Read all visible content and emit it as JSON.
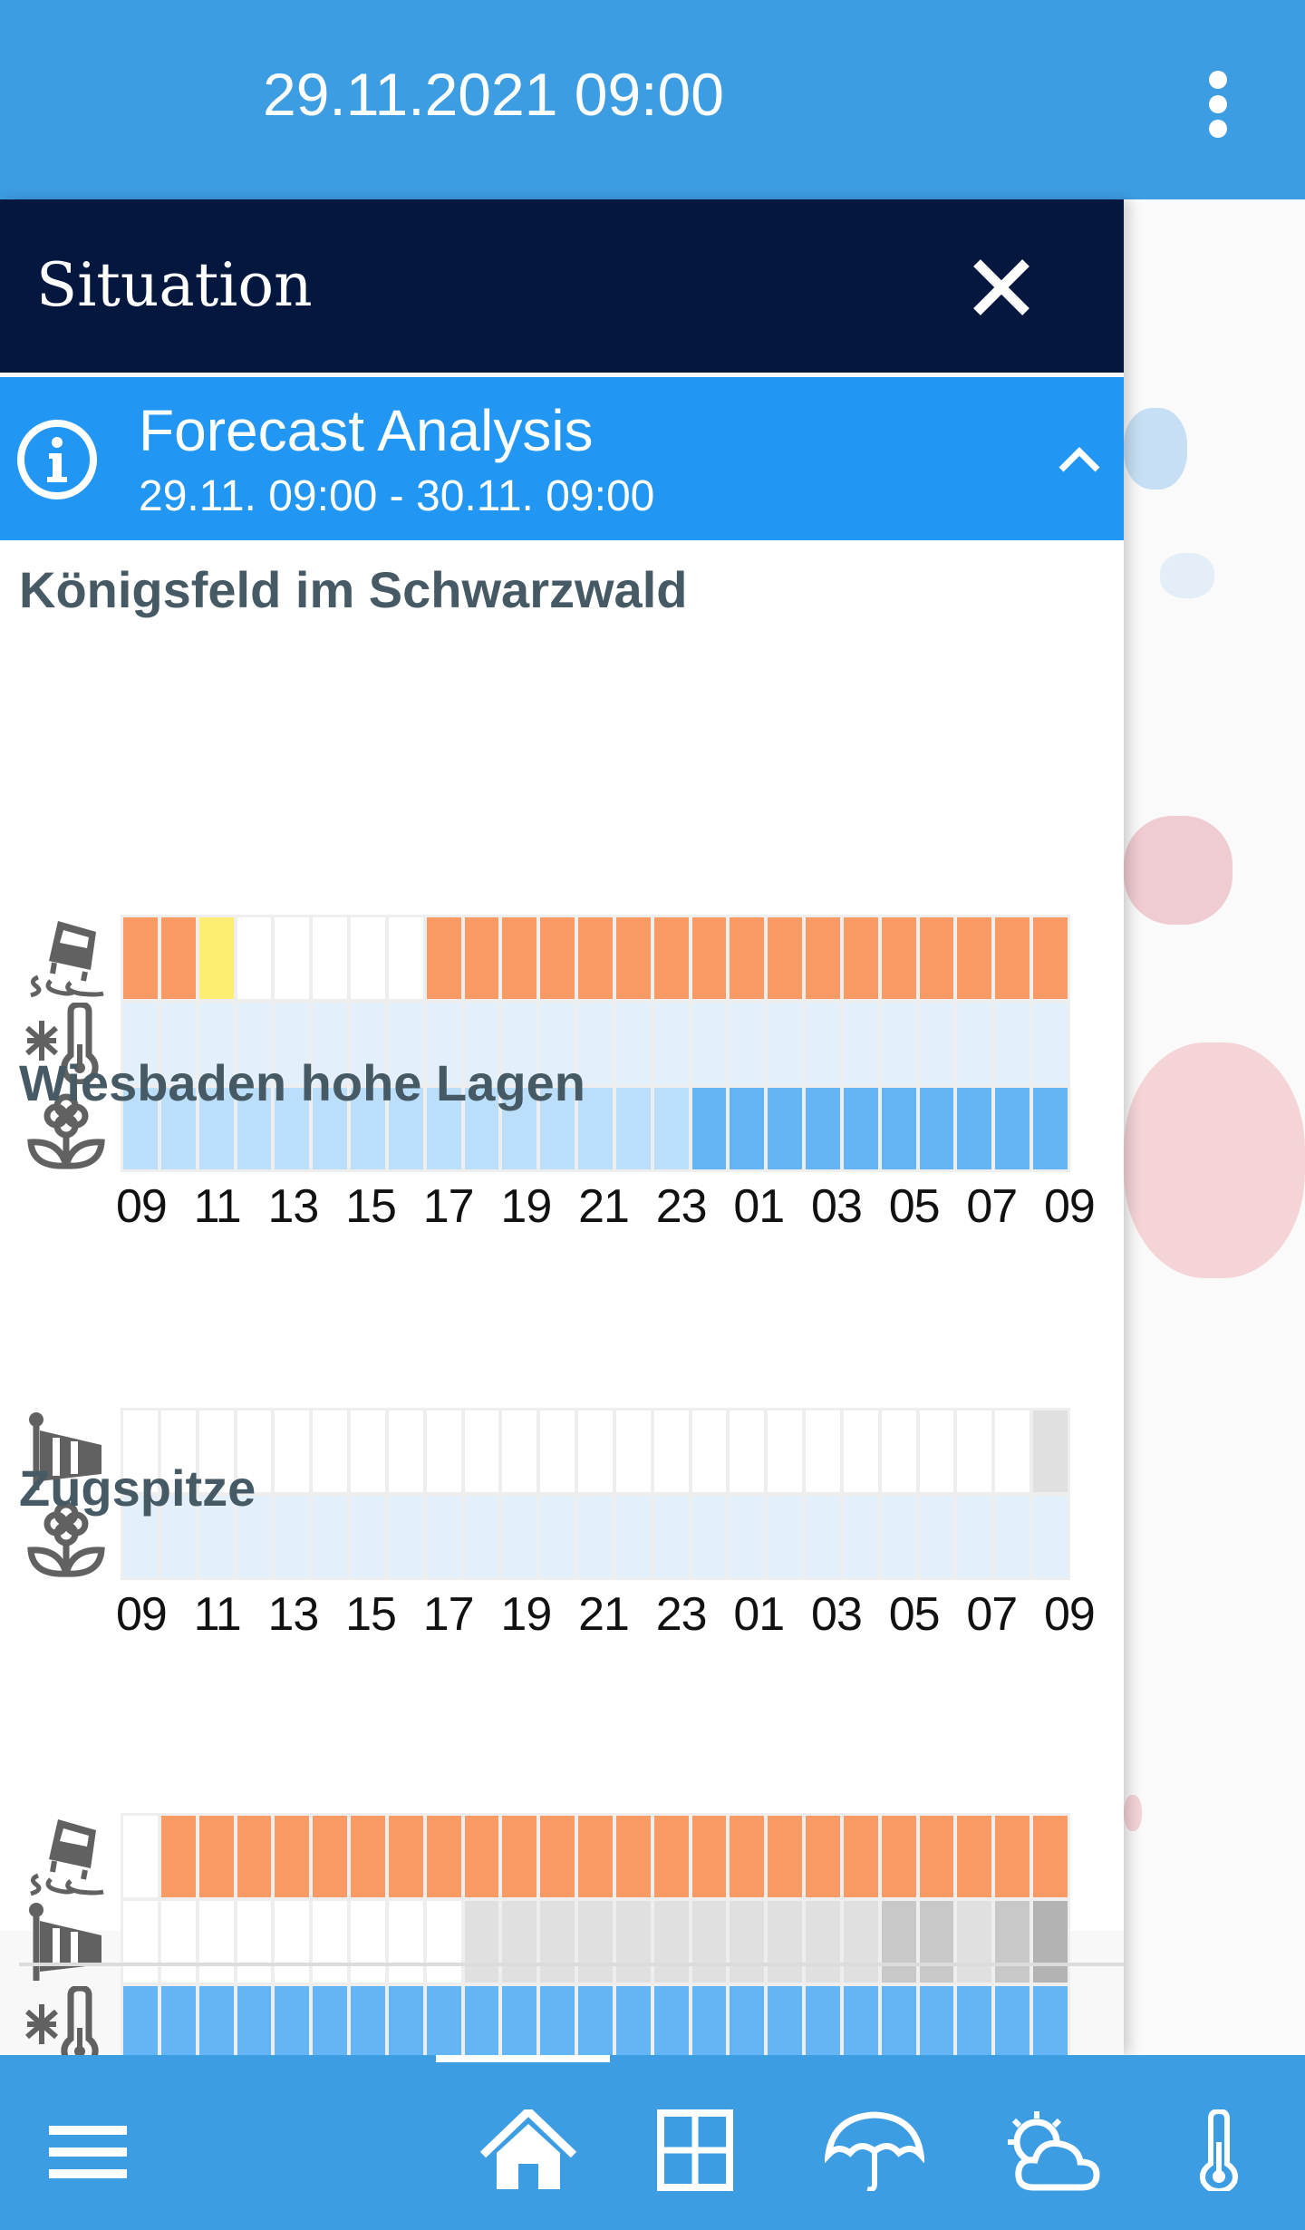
{
  "header": {
    "title": "29.11.2021 09:00",
    "menu_icon": "more-vert-icon"
  },
  "panel": {
    "title": "Situation",
    "close_icon": "close-icon",
    "section": {
      "title": "Forecast Analysis",
      "period": "29.11. 09:00 - 30.11. 09:00",
      "icon": "info-icon",
      "toggle_icon": "chevron-up-icon"
    },
    "hours": [
      "09",
      "11",
      "13",
      "15",
      "17",
      "19",
      "21",
      "23",
      "01",
      "03",
      "05",
      "07",
      "09"
    ],
    "colors": {
      "orange": "#fa9b66",
      "yellow": "#fdee73",
      "white": "#ffffff",
      "paleblue": "#e3f0fb",
      "lightblue": "#bbdefb",
      "blue": "#64b5f6",
      "gray1": "#e0e0e0",
      "gray2": "#c8c8c8",
      "gray3": "#b3b3b3"
    },
    "locations": [
      {
        "name": "Königsfeld im Schwarzwald",
        "rows": [
          {
            "icon": "slippery-road-icon",
            "cells": [
              "orange",
              "orange",
              "yellow",
              "white",
              "white",
              "white",
              "white",
              "white",
              "orange",
              "orange",
              "orange",
              "orange",
              "orange",
              "orange",
              "orange",
              "orange",
              "orange",
              "orange",
              "orange",
              "orange",
              "orange",
              "orange",
              "orange",
              "orange",
              "orange"
            ]
          },
          {
            "icon": "frost-thermometer-icon",
            "cells": [
              "paleblue",
              "paleblue",
              "paleblue",
              "paleblue",
              "paleblue",
              "paleblue",
              "paleblue",
              "paleblue",
              "paleblue",
              "paleblue",
              "paleblue",
              "paleblue",
              "paleblue",
              "paleblue",
              "paleblue",
              "paleblue",
              "paleblue",
              "paleblue",
              "paleblue",
              "paleblue",
              "paleblue",
              "paleblue",
              "paleblue",
              "paleblue",
              "paleblue"
            ]
          },
          {
            "icon": "flower-icon",
            "cells": [
              "lightblue",
              "lightblue",
              "lightblue",
              "lightblue",
              "lightblue",
              "lightblue",
              "lightblue",
              "lightblue",
              "lightblue",
              "lightblue",
              "lightblue",
              "lightblue",
              "lightblue",
              "lightblue",
              "lightblue",
              "blue",
              "blue",
              "blue",
              "blue",
              "blue",
              "blue",
              "blue",
              "blue",
              "blue",
              "blue"
            ]
          }
        ]
      },
      {
        "name": "Wiesbaden hohe Lagen",
        "rows": [
          {
            "icon": "windsock-icon",
            "cells": [
              "white",
              "white",
              "white",
              "white",
              "white",
              "white",
              "white",
              "white",
              "white",
              "white",
              "white",
              "white",
              "white",
              "white",
              "white",
              "white",
              "white",
              "white",
              "white",
              "white",
              "white",
              "white",
              "white",
              "white",
              "gray1"
            ]
          },
          {
            "icon": "flower-icon",
            "cells": [
              "paleblue",
              "paleblue",
              "paleblue",
              "paleblue",
              "paleblue",
              "paleblue",
              "paleblue",
              "paleblue",
              "paleblue",
              "paleblue",
              "paleblue",
              "paleblue",
              "paleblue",
              "paleblue",
              "paleblue",
              "paleblue",
              "paleblue",
              "paleblue",
              "paleblue",
              "paleblue",
              "paleblue",
              "paleblue",
              "paleblue",
              "paleblue",
              "paleblue"
            ]
          }
        ]
      },
      {
        "name": "Zugspitze",
        "rows": [
          {
            "icon": "slippery-road-icon",
            "cells": [
              "white",
              "orange",
              "orange",
              "orange",
              "orange",
              "orange",
              "orange",
              "orange",
              "orange",
              "orange",
              "orange",
              "orange",
              "orange",
              "orange",
              "orange",
              "orange",
              "orange",
              "orange",
              "orange",
              "orange",
              "orange",
              "orange",
              "orange",
              "orange",
              "orange"
            ]
          },
          {
            "icon": "windsock-icon",
            "cells": [
              "white",
              "white",
              "white",
              "white",
              "white",
              "white",
              "white",
              "white",
              "white",
              "gray1",
              "gray1",
              "gray1",
              "gray1",
              "gray1",
              "gray1",
              "gray1",
              "gray1",
              "gray1",
              "gray1",
              "gray1",
              "gray2",
              "gray2",
              "gray1",
              "gray2",
              "gray3"
            ]
          },
          {
            "icon": "frost-thermometer-icon",
            "cells": [
              "blue",
              "blue",
              "blue",
              "blue",
              "blue",
              "blue",
              "blue",
              "blue",
              "blue",
              "blue",
              "blue",
              "blue",
              "blue",
              "blue",
              "blue",
              "blue",
              "blue",
              "blue",
              "blue",
              "blue",
              "blue",
              "blue",
              "blue",
              "blue",
              "blue"
            ]
          }
        ]
      }
    ]
  },
  "bottom_nav": {
    "items": [
      "menu-icon",
      "home-icon",
      "grid-icon",
      "umbrella-icon",
      "sun-cloud-icon",
      "thermometer-icon"
    ]
  }
}
